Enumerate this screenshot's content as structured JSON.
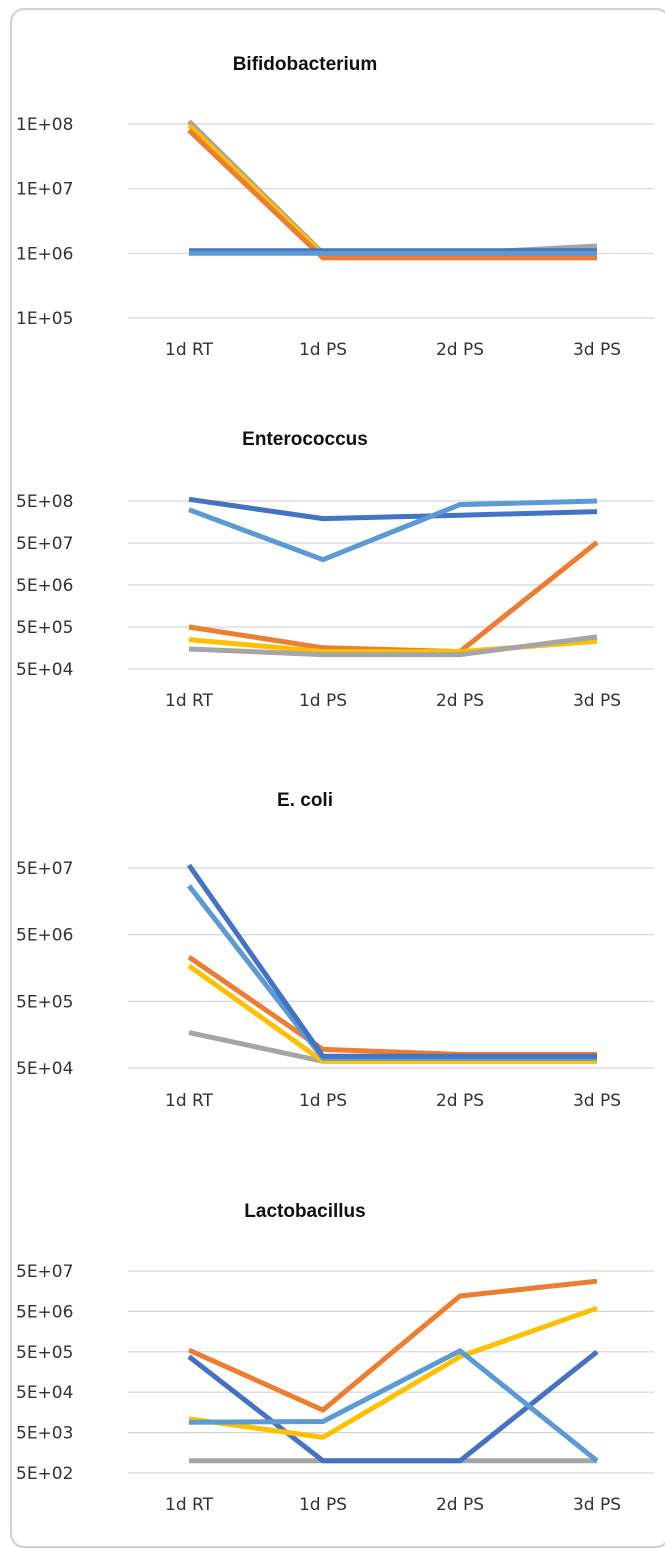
{
  "colors": {
    "series1": "#4472c4",
    "series2": "#ed7d31",
    "series3": "#a5a5a5",
    "series4": "#ffc000",
    "series5": "#5b9bd5",
    "grid": "#d6d6d6",
    "frame": "#d0d0d0"
  },
  "chart_data": [
    {
      "type": "line",
      "title": "Bifidobacterium",
      "xlabel": "",
      "ylabel": "",
      "scale": "log",
      "categories": [
        "1d RT",
        "1d PS",
        "2d PS",
        "3d PS"
      ],
      "y_ticks": [
        100000,
        1000000,
        10000000,
        100000000
      ],
      "y_tick_labels": [
        "1E+05",
        "1E+06",
        "1E+07",
        "1E+08"
      ],
      "ylim": [
        100000,
        100000000
      ],
      "grid": true,
      "legend": "none",
      "series": [
        {
          "color_key": "series3",
          "values": [
            110000000,
            1000000,
            1000000,
            1300000
          ]
        },
        {
          "color_key": "series4",
          "values": [
            95000000,
            950000,
            950000,
            950000
          ]
        },
        {
          "color_key": "series2",
          "values": [
            80000000,
            850000,
            850000,
            850000
          ]
        },
        {
          "color_key": "series1",
          "values": [
            1100000,
            1100000,
            1100000,
            1100000
          ]
        },
        {
          "color_key": "series5",
          "values": [
            1000000,
            1000000,
            1000000,
            1000000
          ]
        }
      ]
    },
    {
      "type": "line",
      "title": "Enterococcus",
      "xlabel": "",
      "ylabel": "",
      "scale": "log",
      "categories": [
        "1d RT",
        "1d PS",
        "2d PS",
        "3d PS"
      ],
      "y_ticks": [
        50000,
        500000,
        5000000,
        50000000,
        500000000
      ],
      "y_tick_labels": [
        "5E+04",
        "5E+05",
        "5E+06",
        "5E+07",
        "5E+08"
      ],
      "ylim": [
        50000,
        500000000
      ],
      "grid": true,
      "legend": "none",
      "series": [
        {
          "color_key": "series1",
          "values": [
            550000000,
            190000000,
            230000000,
            280000000
          ]
        },
        {
          "color_key": "series5",
          "values": [
            310000000,
            20000000,
            410000000,
            500000000
          ]
        },
        {
          "color_key": "series2",
          "values": [
            500000,
            160000,
            130000,
            52000000
          ]
        },
        {
          "color_key": "series4",
          "values": [
            250000,
            130000,
            130000,
            230000
          ]
        },
        {
          "color_key": "series3",
          "values": [
            150000,
            110000,
            110000,
            290000
          ]
        }
      ]
    },
    {
      "type": "line",
      "title": "E. coli",
      "xlabel": "",
      "ylabel": "",
      "scale": "log",
      "categories": [
        "1d RT",
        "1d PS",
        "2d PS",
        "3d PS"
      ],
      "y_ticks": [
        50000,
        500000,
        5000000,
        50000000
      ],
      "y_tick_labels": [
        "5E+04",
        "5E+05",
        "5E+06",
        "5E+07"
      ],
      "ylim": [
        50000,
        50000000
      ],
      "grid": true,
      "legend": "none",
      "series": [
        {
          "color_key": "series3",
          "values": [
            170000,
            63000,
            63000,
            63000
          ]
        },
        {
          "color_key": "series4",
          "values": [
            1700000,
            63000,
            63000,
            63000
          ]
        },
        {
          "color_key": "series2",
          "values": [
            2300000,
            95000,
            80000,
            80000
          ]
        },
        {
          "color_key": "series5",
          "values": [
            27000000,
            70000,
            70000,
            70000
          ]
        },
        {
          "color_key": "series1",
          "values": [
            55000000,
            75000,
            75000,
            75000
          ]
        }
      ]
    },
    {
      "type": "line",
      "title": "Lactobacillus",
      "xlabel": "",
      "ylabel": "",
      "scale": "log",
      "categories": [
        "1d RT",
        "1d PS",
        "2d PS",
        "3d PS"
      ],
      "y_ticks": [
        500,
        5000,
        50000,
        500000,
        5000000,
        50000000
      ],
      "y_tick_labels": [
        "5E+02",
        "5E+03",
        "5E+04",
        "5E+05",
        "5E+06",
        "5E+07"
      ],
      "ylim": [
        500,
        50000000
      ],
      "grid": true,
      "legend": "none",
      "series": [
        {
          "color_key": "series3",
          "values": [
            1000,
            1000,
            1000,
            1000
          ]
        },
        {
          "color_key": "series1",
          "values": [
            380000,
            1000,
            1000,
            500000
          ]
        },
        {
          "color_key": "series4",
          "values": [
            11000,
            3800,
            380000,
            6000000
          ]
        },
        {
          "color_key": "series5",
          "values": [
            9000,
            9400,
            530000,
            1000
          ]
        },
        {
          "color_key": "series2",
          "values": [
            550000,
            18000,
            12000000,
            28000000
          ]
        }
      ]
    }
  ]
}
